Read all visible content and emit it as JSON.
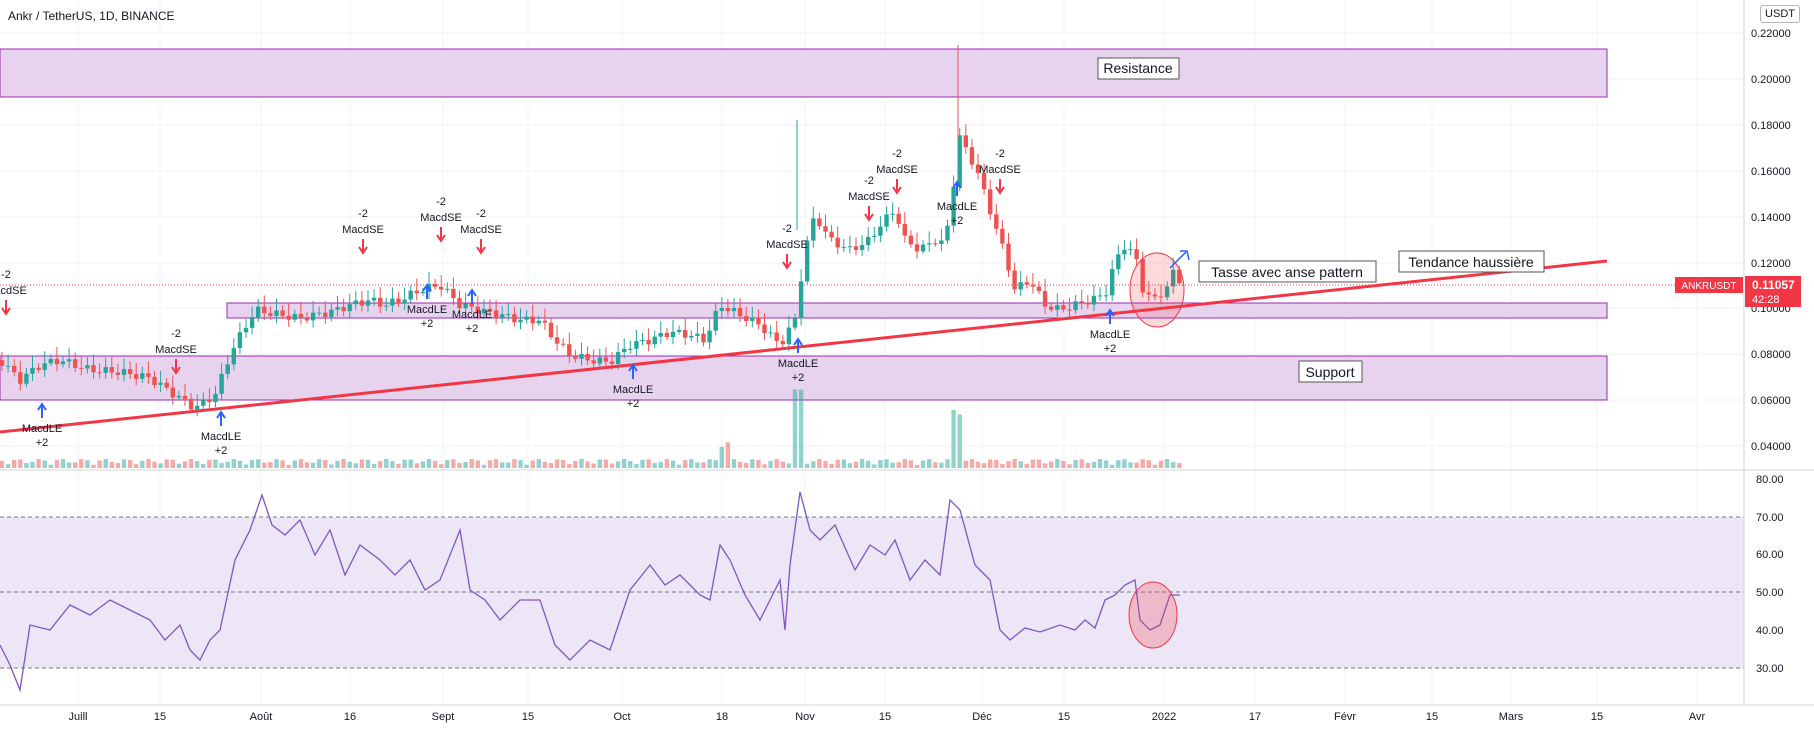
{
  "header": {
    "title": "Ankr / TetherUS, 1D, BINANCE",
    "currency_button": "USDT"
  },
  "price_axis": {
    "ticks": [
      "0.22000",
      "0.20000",
      "0.18000",
      "0.16000",
      "0.14000",
      "0.12000",
      "0.10000",
      "0.08000",
      "0.06000",
      "0.04000"
    ],
    "symbol_tag": "ANKRUSDT",
    "current_price": "0.11057",
    "countdown": "42:28"
  },
  "rsi_axis": {
    "ticks": [
      "80.00",
      "70.00",
      "60.00",
      "50.00",
      "40.00",
      "30.00"
    ]
  },
  "time_axis": {
    "ticks": [
      "Juill",
      "15",
      "Août",
      "16",
      "Sept",
      "15",
      "Oct",
      "18",
      "Nov",
      "15",
      "Déc",
      "15",
      "2022",
      "17",
      "Févr",
      "15",
      "Mars",
      "15",
      "Avr"
    ]
  },
  "annotations": {
    "resistance": "Resistance",
    "support": "Support",
    "cup_handle": "Tasse avec anse pattern",
    "uptrend": "Tendance haussière"
  },
  "signals": {
    "short_value": "-2",
    "short_name": "MacdSE",
    "long_name": "MacdLE",
    "long_value": "+2"
  },
  "colors": {
    "up": "#26a69a",
    "down": "#ef5350",
    "zone_fill": "#e8d3ee",
    "zone_stroke": "#9c27b0",
    "trendline": "#f23645",
    "rsi_line": "#7e57c2",
    "rsi_band": "#ece6f7",
    "long_arrow": "#2962ff",
    "short_arrow": "#f23645",
    "price_tag": "#f23645"
  }
}
